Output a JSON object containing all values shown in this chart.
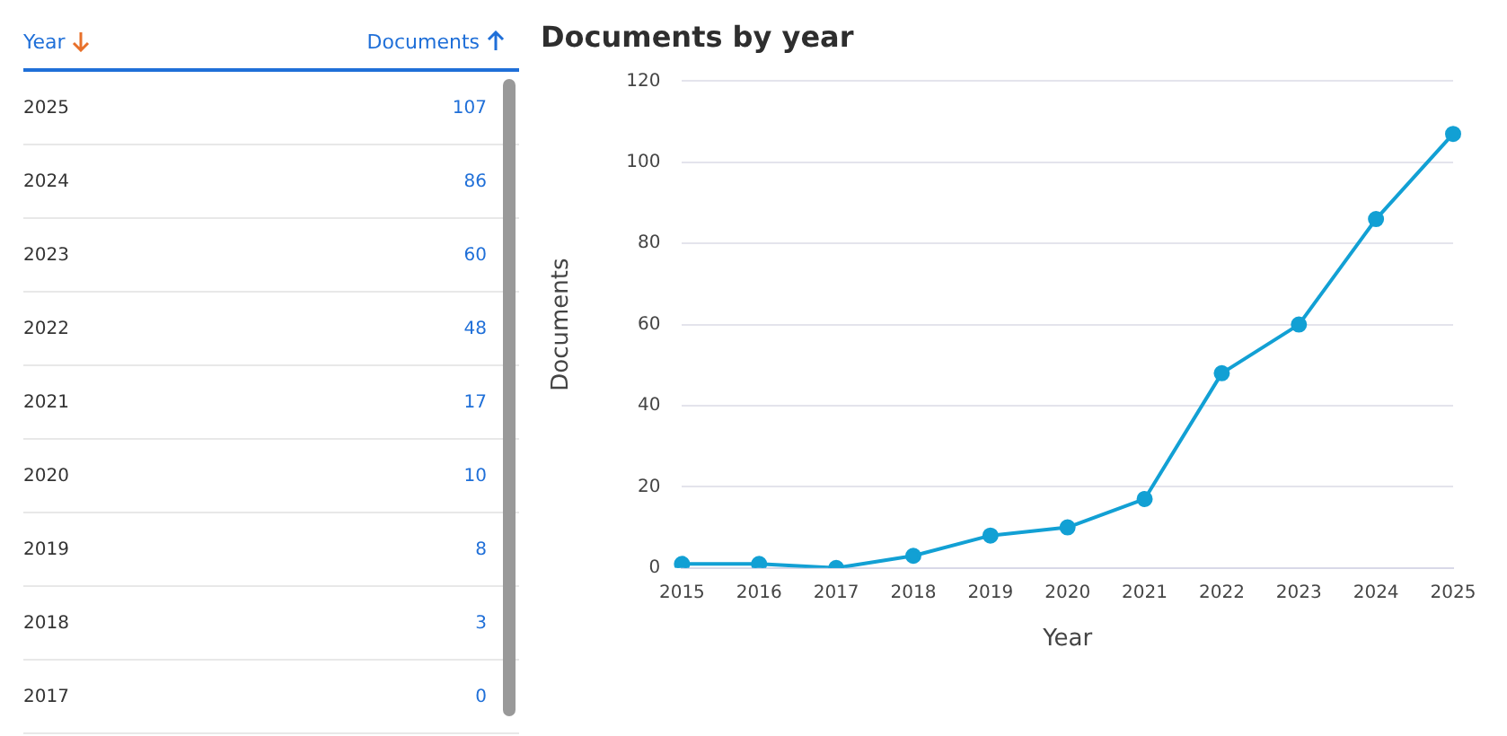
{
  "chart_data": {
    "type": "line",
    "title": "Documents by year",
    "xlabel": "Year",
    "ylabel": "Documents",
    "categories": [
      "2015",
      "2016",
      "2017",
      "2018",
      "2019",
      "2020",
      "2021",
      "2022",
      "2023",
      "2024",
      "2025"
    ],
    "series": [
      {
        "color": "#12a0d4",
        "values": [
          1,
          1,
          0,
          3,
          8,
          10,
          17,
          48,
          60,
          86,
          107
        ]
      }
    ],
    "value_labels": [
      null,
      null,
      "0",
      "3",
      "8",
      "10",
      "17",
      "48",
      "60",
      "86",
      "107"
    ],
    "ylim": [
      0,
      120
    ],
    "yticks": [
      0,
      20,
      40,
      60,
      80,
      100,
      120
    ],
    "grid": "y",
    "legend": false,
    "marker": "circle",
    "line_style": "solid"
  }
}
